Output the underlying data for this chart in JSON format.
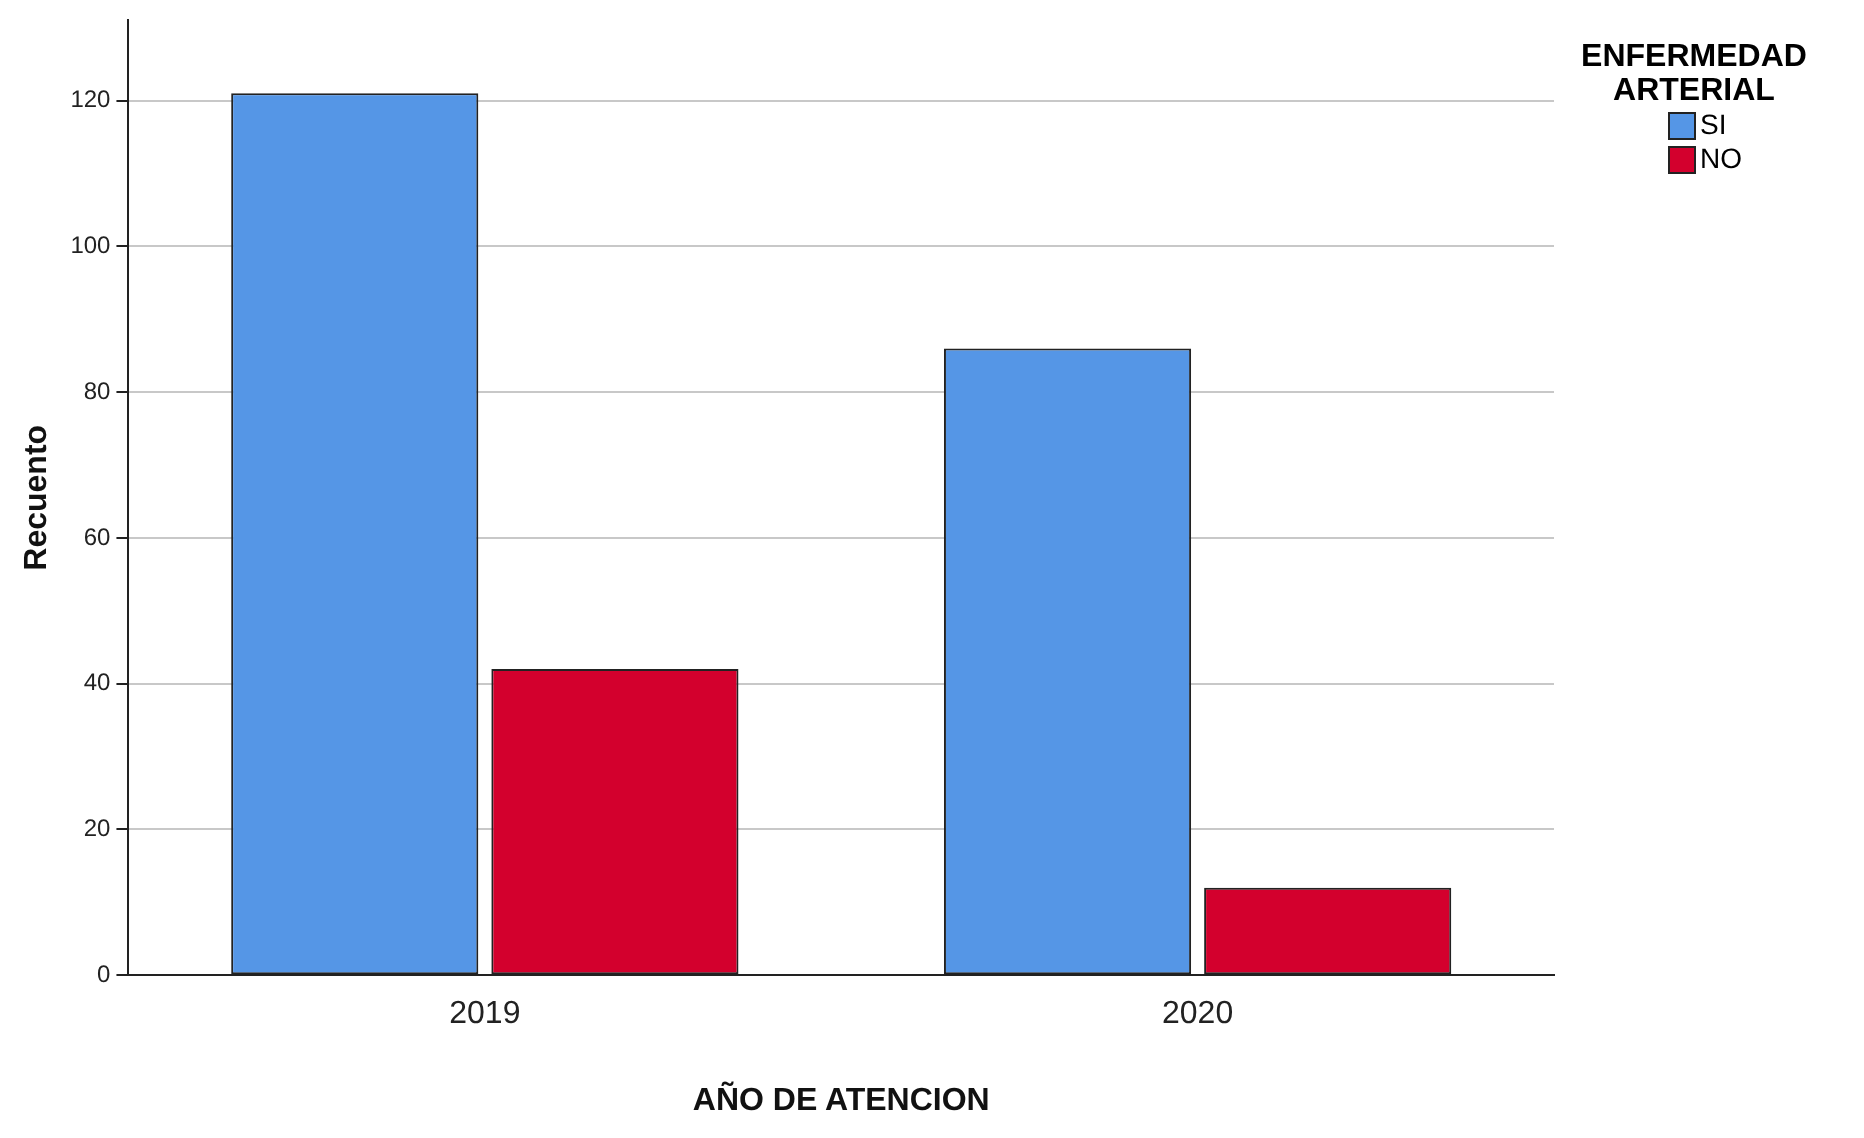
{
  "chart_data": {
    "type": "bar",
    "xlabel": "AÑO DE ATENCION",
    "ylabel": "Recuento",
    "legend_title": "ENFERMEDAD ARTERIAL",
    "categories": [
      "2019",
      "2020"
    ],
    "series": [
      {
        "name": "SI",
        "color": "#5596e6",
        "values": [
          121,
          86
        ]
      },
      {
        "name": "NO",
        "color": "#d3002d",
        "values": [
          42,
          12
        ]
      }
    ],
    "ylim": [
      0,
      131
    ],
    "yticks": [
      0,
      20,
      40,
      60,
      80,
      100,
      120
    ],
    "grid": "y",
    "legend": "top right"
  }
}
